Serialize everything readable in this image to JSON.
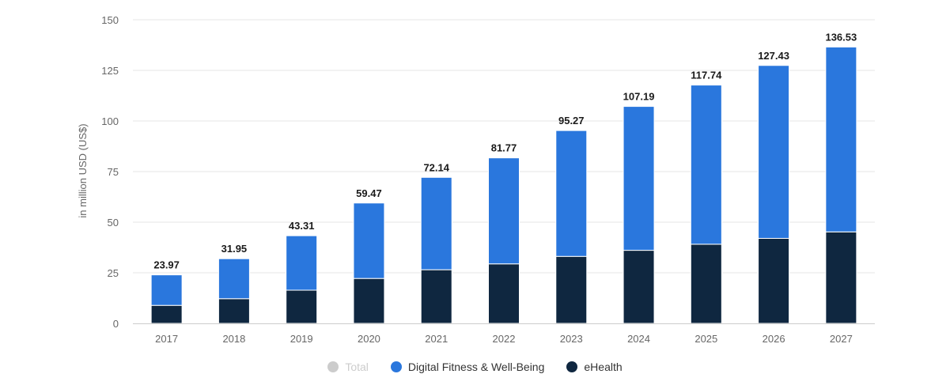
{
  "chart_data": {
    "type": "bar",
    "stacked": true,
    "categories": [
      "2017",
      "2018",
      "2019",
      "2020",
      "2021",
      "2022",
      "2023",
      "2024",
      "2025",
      "2026",
      "2027"
    ],
    "series": [
      {
        "name": "eHealth",
        "color": "#0f2740",
        "values": [
          8.9,
          12.2,
          16.4,
          22.2,
          26.5,
          29.4,
          33.1,
          36.1,
          39.1,
          42.0,
          45.2
        ]
      },
      {
        "name": "Digital Fitness & Well-Being",
        "color": "#2a77dd",
        "values": [
          15.07,
          19.75,
          26.91,
          37.27,
          45.64,
          52.37,
          62.17,
          71.09,
          78.64,
          85.43,
          91.33
        ]
      }
    ],
    "totals": [
      "23.97",
      "31.95",
      "43.31",
      "59.47",
      "72.14",
      "81.77",
      "95.27",
      "107.19",
      "117.74",
      "127.43",
      "136.53"
    ],
    "totals_values": [
      23.97,
      31.95,
      43.31,
      59.47,
      72.14,
      81.77,
      95.27,
      107.19,
      117.74,
      127.43,
      136.53
    ],
    "ylabel": "in million USD (US$)",
    "ylim": [
      0,
      150
    ],
    "yticks": [
      0,
      25,
      50,
      75,
      100,
      125,
      150
    ],
    "grid": true,
    "legend_position": "bottom",
    "legend": [
      {
        "label": "Total",
        "color": "#cccccc",
        "active": false
      },
      {
        "label": "Digital Fitness & Well-Being",
        "color": "#2a77dd",
        "active": true
      },
      {
        "label": "eHealth",
        "color": "#0f2740",
        "active": true
      }
    ],
    "gridline_color": "#e6e6e6",
    "axis_color": "#cccccc"
  }
}
